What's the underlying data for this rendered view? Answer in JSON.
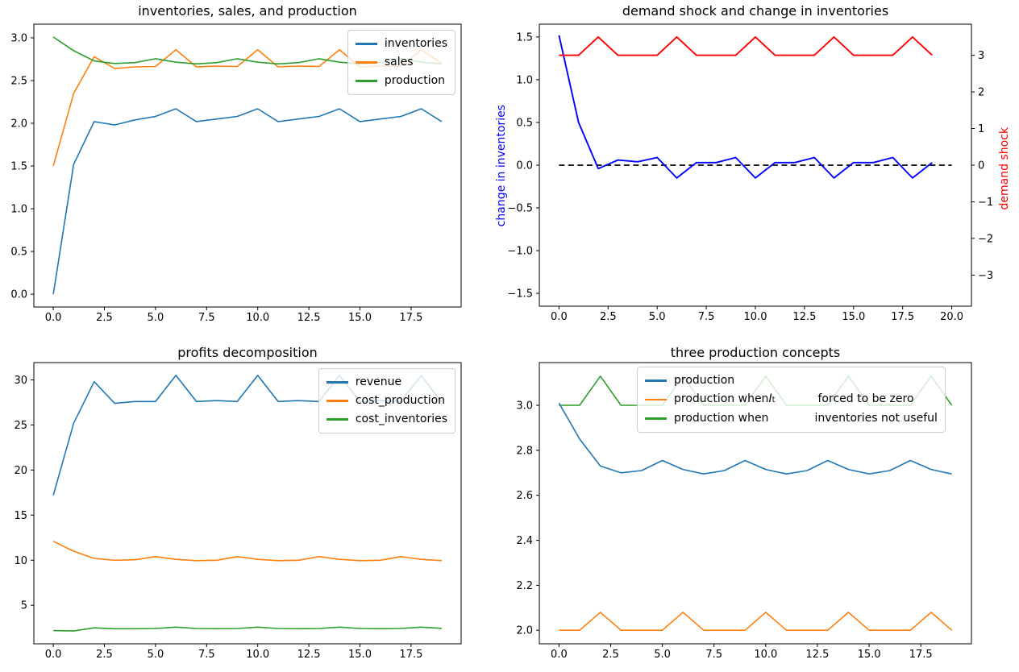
{
  "figure": {
    "background": "#ffffff"
  },
  "colors": {
    "tab_blue": "#1f77b4",
    "tab_orange": "#ff7f0e",
    "tab_green": "#2ca02c",
    "pure_blue": "#0000ff",
    "pure_red": "#ff0000",
    "black": "#000000",
    "legend_border": "#cccccc"
  },
  "chart_data": [
    {
      "type": "line",
      "title": "inventories, sales, and production",
      "x": [
        0,
        1,
        2,
        3,
        4,
        5,
        6,
        7,
        8,
        9,
        10,
        11,
        12,
        13,
        14,
        15,
        16,
        17,
        18,
        19
      ],
      "xlim": [
        -0.95,
        19.95
      ],
      "ylim_left": [
        -0.15,
        3.16
      ],
      "grid": false,
      "legend_position": "upper right",
      "xticks": [
        {
          "v": 0,
          "label": "0.0"
        },
        {
          "v": 2.5,
          "label": "2.5"
        },
        {
          "v": 5,
          "label": "5.0"
        },
        {
          "v": 7.5,
          "label": "7.5"
        },
        {
          "v": 10,
          "label": "10.0"
        },
        {
          "v": 12.5,
          "label": "12.5"
        },
        {
          "v": 15,
          "label": "15.0"
        },
        {
          "v": 17.5,
          "label": "17.5"
        }
      ],
      "yticks_left": [
        {
          "v": 0,
          "label": "0.0"
        },
        {
          "v": 0.5,
          "label": "0.5"
        },
        {
          "v": 1,
          "label": "1.0"
        },
        {
          "v": 1.5,
          "label": "1.5"
        },
        {
          "v": 2,
          "label": "2.0"
        },
        {
          "v": 2.5,
          "label": "2.5"
        },
        {
          "v": 3,
          "label": "3.0"
        }
      ],
      "series": [
        {
          "name": "inventories",
          "color": "#1f77b4",
          "values": [
            0.0,
            1.52,
            2.02,
            1.98,
            2.04,
            2.08,
            2.17,
            2.02,
            2.05,
            2.08,
            2.17,
            2.02,
            2.05,
            2.08,
            2.17,
            2.02,
            2.05,
            2.08,
            2.17,
            2.02
          ]
        },
        {
          "name": "sales",
          "color": "#ff7f0e",
          "values": [
            1.5,
            2.35,
            2.78,
            2.64,
            2.66,
            2.665,
            2.86,
            2.66,
            2.67,
            2.665,
            2.86,
            2.66,
            2.67,
            2.665,
            2.86,
            2.66,
            2.67,
            2.665,
            2.86,
            2.7
          ]
        },
        {
          "name": "production",
          "color": "#2ca02c",
          "values": [
            3.01,
            2.85,
            2.73,
            2.7,
            2.71,
            2.755,
            2.715,
            2.695,
            2.71,
            2.755,
            2.715,
            2.695,
            2.71,
            2.755,
            2.715,
            2.695,
            2.71,
            2.755,
            2.715,
            2.695
          ]
        }
      ],
      "legend": {
        "entries": [
          {
            "color": "#1f77b4",
            "segments": [
              {
                "text": "inventories"
              }
            ]
          },
          {
            "color": "#ff7f0e",
            "segments": [
              {
                "text": "sales"
              }
            ]
          },
          {
            "color": "#2ca02c",
            "segments": [
              {
                "text": "production"
              }
            ]
          }
        ]
      }
    },
    {
      "type": "line",
      "title": "demand shock and change in inventories",
      "x": [
        0,
        1,
        2,
        3,
        4,
        5,
        6,
        7,
        8,
        9,
        10,
        11,
        12,
        13,
        14,
        15,
        16,
        17,
        18,
        19
      ],
      "xlim": [
        -1,
        21
      ],
      "ylim_left": [
        -1.65,
        1.65
      ],
      "ylim_right": [
        -3.85,
        3.85
      ],
      "grid": false,
      "ylabel_left": {
        "text": "change in inventories",
        "color": "#0000ff"
      },
      "ylabel_right": {
        "text": "demand shock",
        "color": "#ff0000"
      },
      "xticks": [
        {
          "v": 0,
          "label": "0.0"
        },
        {
          "v": 2.5,
          "label": "2.5"
        },
        {
          "v": 5,
          "label": "5.0"
        },
        {
          "v": 7.5,
          "label": "7.5"
        },
        {
          "v": 10,
          "label": "10.0"
        },
        {
          "v": 12.5,
          "label": "12.5"
        },
        {
          "v": 15,
          "label": "15.0"
        },
        {
          "v": 17.5,
          "label": "17.5"
        },
        {
          "v": 20,
          "label": "20.0"
        }
      ],
      "yticks_left": [
        {
          "v": -1.5,
          "label": "−1.5"
        },
        {
          "v": -1,
          "label": "−1.0"
        },
        {
          "v": -0.5,
          "label": "−0.5"
        },
        {
          "v": 0,
          "label": "0.0"
        },
        {
          "v": 0.5,
          "label": "0.5"
        },
        {
          "v": 1,
          "label": "1.0"
        },
        {
          "v": 1.5,
          "label": "1.5"
        }
      ],
      "yticks_right": [
        {
          "v": -3,
          "label": "−3"
        },
        {
          "v": -2,
          "label": "−2"
        },
        {
          "v": -1,
          "label": "−1"
        },
        {
          "v": 0,
          "label": "0"
        },
        {
          "v": 1,
          "label": "1"
        },
        {
          "v": 2,
          "label": "2"
        },
        {
          "v": 3,
          "label": "3"
        }
      ],
      "series": [
        {
          "name": "zero line",
          "color": "#000000",
          "axis": "left",
          "dash": true,
          "width": 1.8,
          "x": [
            0,
            20
          ],
          "values": [
            0,
            0
          ]
        },
        {
          "name": "change in inventories",
          "color": "#0000ff",
          "axis": "left",
          "width": 1.9,
          "values": [
            1.52,
            0.5,
            -0.04,
            0.06,
            0.04,
            0.09,
            -0.15,
            0.03,
            0.03,
            0.09,
            -0.15,
            0.03,
            0.03,
            0.09,
            -0.15,
            0.03,
            0.03,
            0.09,
            -0.15,
            0.03
          ]
        },
        {
          "name": "demand shock",
          "color": "#ff0000",
          "axis": "right",
          "width": 1.9,
          "values": [
            3,
            3,
            3.5,
            3,
            3,
            3,
            3.5,
            3,
            3,
            3,
            3.5,
            3,
            3,
            3,
            3.5,
            3,
            3,
            3,
            3.5,
            3
          ]
        }
      ]
    },
    {
      "type": "line",
      "title": "profits decomposition",
      "x": [
        0,
        1,
        2,
        3,
        4,
        5,
        6,
        7,
        8,
        9,
        10,
        11,
        12,
        13,
        14,
        15,
        16,
        17,
        18,
        19
      ],
      "xlim": [
        -0.95,
        19.95
      ],
      "ylim_left": [
        0.73,
        31.92
      ],
      "grid": false,
      "legend_position": "upper right",
      "xticks": [
        {
          "v": 0,
          "label": "0.0"
        },
        {
          "v": 2.5,
          "label": "2.5"
        },
        {
          "v": 5,
          "label": "5.0"
        },
        {
          "v": 7.5,
          "label": "7.5"
        },
        {
          "v": 10,
          "label": "10.0"
        },
        {
          "v": 12.5,
          "label": "12.5"
        },
        {
          "v": 15,
          "label": "15.0"
        },
        {
          "v": 17.5,
          "label": "17.5"
        }
      ],
      "yticks_left": [
        {
          "v": 5,
          "label": "5"
        },
        {
          "v": 10,
          "label": "10"
        },
        {
          "v": 15,
          "label": "15"
        },
        {
          "v": 20,
          "label": "20"
        },
        {
          "v": 25,
          "label": "25"
        },
        {
          "v": 30,
          "label": "30"
        }
      ],
      "series": [
        {
          "name": "revenue",
          "color": "#1f77b4",
          "values": [
            17.2,
            25.2,
            29.8,
            27.4,
            27.6,
            27.6,
            30.5,
            27.6,
            27.7,
            27.6,
            30.5,
            27.6,
            27.7,
            27.6,
            30.5,
            27.6,
            27.7,
            27.6,
            30.5,
            27.5
          ]
        },
        {
          "name": "cost_production",
          "color": "#ff7f0e",
          "values": [
            12.1,
            11.0,
            10.2,
            10.0,
            10.05,
            10.4,
            10.1,
            9.95,
            10.0,
            10.4,
            10.1,
            9.95,
            10.0,
            10.4,
            10.1,
            9.95,
            10.0,
            10.4,
            10.1,
            9.95
          ]
        },
        {
          "name": "cost_inventories",
          "color": "#2ca02c",
          "values": [
            2.2,
            2.15,
            2.5,
            2.4,
            2.4,
            2.43,
            2.58,
            2.43,
            2.4,
            2.43,
            2.58,
            2.43,
            2.4,
            2.43,
            2.58,
            2.43,
            2.4,
            2.43,
            2.58,
            2.45
          ]
        }
      ],
      "legend": {
        "entries": [
          {
            "color": "#1f77b4",
            "segments": [
              {
                "text": "revenue"
              }
            ]
          },
          {
            "color": "#ff7f0e",
            "segments": [
              {
                "text": "cost_production"
              }
            ]
          },
          {
            "color": "#2ca02c",
            "segments": [
              {
                "text": "cost_inventories"
              }
            ]
          }
        ]
      }
    },
    {
      "type": "line",
      "title": "three production concepts",
      "x": [
        0,
        1,
        2,
        3,
        4,
        5,
        6,
        7,
        8,
        9,
        10,
        11,
        12,
        13,
        14,
        15,
        16,
        17,
        18,
        19
      ],
      "xlim": [
        -0.95,
        19.95
      ],
      "ylim_left": [
        1.94,
        3.19
      ],
      "grid": false,
      "legend_position": "upper center",
      "xticks": [
        {
          "v": 0,
          "label": "0.0"
        },
        {
          "v": 2.5,
          "label": "2.5"
        },
        {
          "v": 5,
          "label": "5.0"
        },
        {
          "v": 7.5,
          "label": "7.5"
        },
        {
          "v": 10,
          "label": "10.0"
        },
        {
          "v": 12.5,
          "label": "12.5"
        },
        {
          "v": 15,
          "label": "15.0"
        },
        {
          "v": 17.5,
          "label": "17.5"
        }
      ],
      "yticks_left": [
        {
          "v": 2.0,
          "label": "2.0"
        },
        {
          "v": 2.2,
          "label": "2.2"
        },
        {
          "v": 2.4,
          "label": "2.4"
        },
        {
          "v": 2.6,
          "label": "2.6"
        },
        {
          "v": 2.8,
          "label": "2.8"
        },
        {
          "v": 3.0,
          "label": "3.0"
        }
      ],
      "series": [
        {
          "name": "production when inventories not useful",
          "color": "#2ca02c",
          "values": [
            3.0,
            3.0,
            3.13,
            3.0,
            3.0,
            3.0,
            3.13,
            3.0,
            3.0,
            3.0,
            3.13,
            3.0,
            3.0,
            3.0,
            3.13,
            3.0,
            3.0,
            3.0,
            3.13,
            3.0
          ]
        },
        {
          "name": "production",
          "color": "#1f77b4",
          "values": [
            3.01,
            2.85,
            2.73,
            2.7,
            2.71,
            2.755,
            2.715,
            2.695,
            2.71,
            2.755,
            2.715,
            2.695,
            2.71,
            2.755,
            2.715,
            2.695,
            2.71,
            2.755,
            2.715,
            2.695
          ]
        },
        {
          "name": "production when I_t forced to be zero",
          "color": "#ff7f0e",
          "values": [
            2.0,
            2.0,
            2.08,
            2.0,
            2.0,
            2.0,
            2.08,
            2.0,
            2.0,
            2.0,
            2.08,
            2.0,
            2.0,
            2.0,
            2.08,
            2.0,
            2.0,
            2.0,
            2.08,
            2.0
          ]
        }
      ],
      "legend": {
        "entries": [
          {
            "color": "#1f77b4",
            "segments": [
              {
                "text": "production"
              }
            ]
          },
          {
            "color": "#ff7f0e",
            "segments": [
              {
                "text": "production when "
              },
              {
                "math": "I",
                "sub": "t"
              },
              {
                "spacer": 53
              },
              {
                "text": "forced to be zero"
              }
            ]
          },
          {
            "color": "#2ca02c",
            "segments": [
              {
                "text": "production when"
              },
              {
                "spacer": 57
              },
              {
                "text": "inventories not useful"
              }
            ]
          }
        ]
      }
    }
  ]
}
